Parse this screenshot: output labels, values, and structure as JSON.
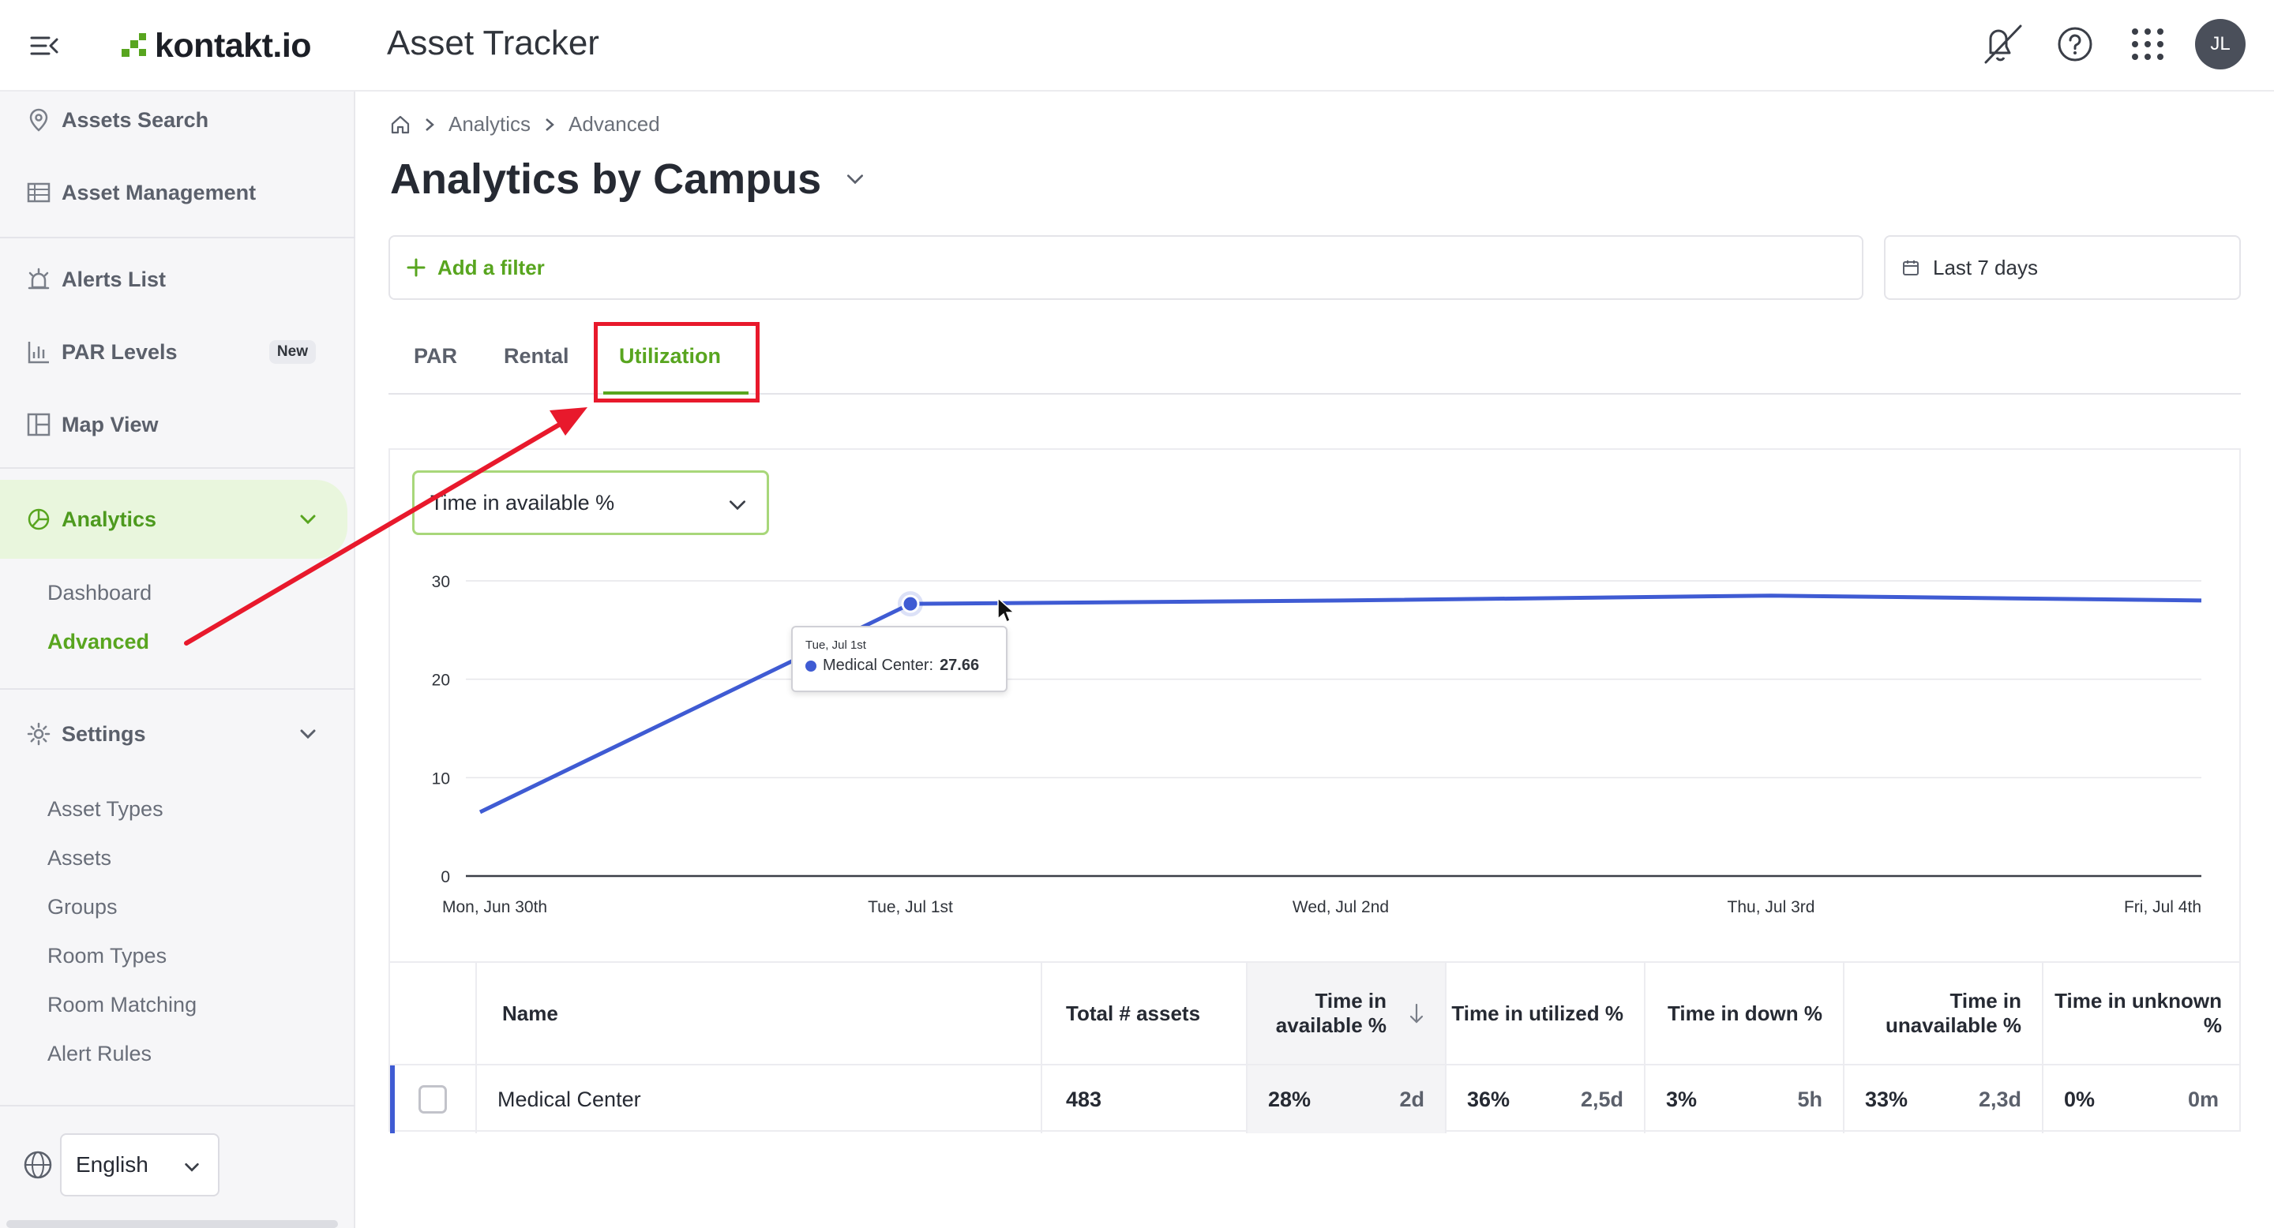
{
  "header": {
    "brand": "kontakt.io",
    "app_title": "Asset Tracker",
    "avatar_initials": "JL",
    "icons": [
      "menu-collapse-icon",
      "mute-notifications-icon",
      "help-icon",
      "apps-grid-icon"
    ]
  },
  "sidebar": {
    "items": [
      {
        "label": "Assets Search",
        "icon": "map-pin-icon"
      },
      {
        "label": "Asset Management",
        "icon": "table-icon"
      },
      {
        "label": "Alerts List",
        "icon": "alarm-icon"
      },
      {
        "label": "PAR Levels",
        "icon": "bar-chart-icon",
        "badge": "New"
      },
      {
        "label": "Map View",
        "icon": "map-layout-icon"
      },
      {
        "label": "Analytics",
        "icon": "pie-chart-icon"
      },
      {
        "label": "Settings",
        "icon": "gear-icon"
      }
    ],
    "analytics_sub": [
      "Dashboard",
      "Advanced"
    ],
    "settings_sub": [
      "Asset Types",
      "Assets",
      "Groups",
      "Room Types",
      "Room Matching",
      "Alert Rules"
    ],
    "language": "English"
  },
  "breadcrumb": [
    "Analytics",
    "Advanced"
  ],
  "page_title": "Analytics by Campus",
  "filter": {
    "add_label": "Add a filter",
    "date_range": "Last 7 days"
  },
  "tabs": [
    "PAR",
    "Rental",
    "Utilization"
  ],
  "active_tab": "Utilization",
  "metric_select": "Time in available %",
  "tooltip": {
    "date": "Tue, Jul 1st",
    "series": "Medical Center:",
    "value": "27.66"
  },
  "chart_data": {
    "type": "line",
    "x": [
      "Mon, Jun 30th",
      "Tue, Jul 1st",
      "Wed, Jul 2nd",
      "Thu, Jul 3rd",
      "Fri, Jul 4th"
    ],
    "series": [
      {
        "name": "Medical Center",
        "values": [
          6.5,
          27.66,
          28.0,
          28.5,
          28.0
        ]
      }
    ],
    "y_ticks": [
      0,
      10,
      20,
      30
    ],
    "ylim": [
      0,
      30
    ],
    "grid": true,
    "colors": {
      "line": "#3f5bd3"
    }
  },
  "table": {
    "columns": [
      "Name",
      "Total # assets",
      "Time in available %",
      "Time in utilized %",
      "Time in down %",
      "Time in unavailable %",
      "Time in unknown %"
    ],
    "rows": [
      {
        "name": "Medical Center",
        "total": "483",
        "available_pct": "28%",
        "available_time": "2d",
        "utilized_pct": "36%",
        "utilized_time": "2,5d",
        "down_pct": "3%",
        "down_time": "5h",
        "unavailable_pct": "33%",
        "unavailable_time": "2,3d",
        "unknown_pct": "0%",
        "unknown_time": "0m"
      }
    ]
  },
  "colors": {
    "accent": "#58a51f",
    "series": "#3f5bd3",
    "annotation": "#e8192c"
  }
}
